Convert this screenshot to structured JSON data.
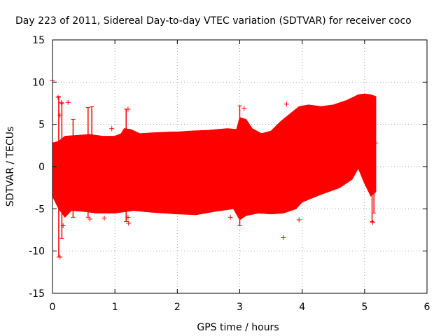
{
  "chart_data": {
    "type": "scatter",
    "title": "Day 223 of 2011, Sidereal Day-to-day VTEC variation (SDTVAR) for receiver coco",
    "xlabel": "GPS time / hours",
    "ylabel": "SDTVAR / TECUs",
    "xlim": [
      0,
      6
    ],
    "ylim": [
      -15,
      15
    ],
    "xticks": [
      0,
      1,
      2,
      3,
      4,
      5,
      6
    ],
    "yticks": [
      -15,
      -10,
      -5,
      0,
      5,
      10,
      15
    ],
    "grid": true,
    "marker": "+",
    "color": "#ff0000",
    "band_upper": [
      {
        "x": 0.0,
        "y": 2.8
      },
      {
        "x": 0.1,
        "y": 3.0
      },
      {
        "x": 0.2,
        "y": 3.6
      },
      {
        "x": 0.4,
        "y": 3.7
      },
      {
        "x": 0.6,
        "y": 3.8
      },
      {
        "x": 0.8,
        "y": 3.6
      },
      {
        "x": 1.0,
        "y": 3.6
      },
      {
        "x": 1.1,
        "y": 3.9
      },
      {
        "x": 1.15,
        "y": 4.5
      },
      {
        "x": 1.25,
        "y": 4.4
      },
      {
        "x": 1.4,
        "y": 3.9
      },
      {
        "x": 1.6,
        "y": 4.0
      },
      {
        "x": 1.9,
        "y": 4.1
      },
      {
        "x": 2.0,
        "y": 4.1
      },
      {
        "x": 2.2,
        "y": 4.2
      },
      {
        "x": 2.5,
        "y": 4.3
      },
      {
        "x": 2.8,
        "y": 4.5
      },
      {
        "x": 2.95,
        "y": 4.4
      },
      {
        "x": 3.0,
        "y": 5.8
      },
      {
        "x": 3.1,
        "y": 5.6
      },
      {
        "x": 3.2,
        "y": 4.5
      },
      {
        "x": 3.35,
        "y": 3.9
      },
      {
        "x": 3.5,
        "y": 4.2
      },
      {
        "x": 3.65,
        "y": 5.3
      },
      {
        "x": 3.8,
        "y": 6.2
      },
      {
        "x": 3.95,
        "y": 7.1
      },
      {
        "x": 4.1,
        "y": 7.3
      },
      {
        "x": 4.3,
        "y": 7.1
      },
      {
        "x": 4.5,
        "y": 7.3
      },
      {
        "x": 4.7,
        "y": 7.8
      },
      {
        "x": 4.9,
        "y": 8.5
      },
      {
        "x": 5.0,
        "y": 8.6
      },
      {
        "x": 5.1,
        "y": 8.5
      },
      {
        "x": 5.18,
        "y": 8.3
      }
    ],
    "band_lower": [
      {
        "x": 0.0,
        "y": -3.5
      },
      {
        "x": 0.1,
        "y": -5.0
      },
      {
        "x": 0.2,
        "y": -6.0
      },
      {
        "x": 0.3,
        "y": -5.2
      },
      {
        "x": 0.5,
        "y": -5.3
      },
      {
        "x": 0.7,
        "y": -5.5
      },
      {
        "x": 1.0,
        "y": -5.5
      },
      {
        "x": 1.3,
        "y": -5.2
      },
      {
        "x": 1.6,
        "y": -5.4
      },
      {
        "x": 2.0,
        "y": -5.6
      },
      {
        "x": 2.3,
        "y": -5.7
      },
      {
        "x": 2.6,
        "y": -5.3
      },
      {
        "x": 2.9,
        "y": -5.0
      },
      {
        "x": 3.0,
        "y": -6.3
      },
      {
        "x": 3.1,
        "y": -5.8
      },
      {
        "x": 3.3,
        "y": -5.5
      },
      {
        "x": 3.5,
        "y": -5.6
      },
      {
        "x": 3.7,
        "y": -5.5
      },
      {
        "x": 3.9,
        "y": -5.0
      },
      {
        "x": 4.0,
        "y": -4.2
      },
      {
        "x": 4.3,
        "y": -3.3
      },
      {
        "x": 4.6,
        "y": -2.5
      },
      {
        "x": 4.8,
        "y": -1.5
      },
      {
        "x": 4.9,
        "y": -0.2
      },
      {
        "x": 5.0,
        "y": -2.0
      },
      {
        "x": 5.1,
        "y": -3.5
      },
      {
        "x": 5.18,
        "y": -3.0
      }
    ],
    "vertical_spikes": [
      {
        "x": 0.1,
        "y_min": -10.7,
        "y_max": 8.3
      },
      {
        "x": 0.15,
        "y_min": -8.5,
        "y_max": 7.5
      },
      {
        "x": 0.33,
        "y_min": -6.0,
        "y_max": 5.6
      },
      {
        "x": 0.57,
        "y_min": -6.0,
        "y_max": 7.0
      },
      {
        "x": 0.63,
        "y_min": -5.0,
        "y_max": 7.1
      },
      {
        "x": 1.18,
        "y_min": -6.5,
        "y_max": 6.8
      },
      {
        "x": 3.0,
        "y_min": -7.0,
        "y_max": 7.2
      },
      {
        "x": 5.12,
        "y_min": -6.5,
        "y_max": 5.0
      },
      {
        "x": 5.15,
        "y_min": -5.5,
        "y_max": 7.0
      }
    ],
    "outliers": [
      {
        "x": 0.0,
        "y": 10.2
      },
      {
        "x": 0.09,
        "y": 8.2
      },
      {
        "x": 0.12,
        "y": 6.1
      },
      {
        "x": 0.14,
        "y": 7.6
      },
      {
        "x": 0.25,
        "y": 7.6
      },
      {
        "x": 0.12,
        "y": -10.7
      },
      {
        "x": 0.17,
        "y": -7.0
      },
      {
        "x": 0.6,
        "y": -6.2
      },
      {
        "x": 0.83,
        "y": -6.1
      },
      {
        "x": 0.95,
        "y": 4.5
      },
      {
        "x": 1.22,
        "y": -6.7
      },
      {
        "x": 1.21,
        "y": 6.8
      },
      {
        "x": 1.21,
        "y": -6.0
      },
      {
        "x": 2.85,
        "y": -6.0
      },
      {
        "x": 3.07,
        "y": 6.9
      },
      {
        "x": 3.7,
        "y": -8.4
      },
      {
        "x": 3.75,
        "y": 7.4
      },
      {
        "x": 3.95,
        "y": -6.3
      },
      {
        "x": 5.13,
        "y": -6.6
      },
      {
        "x": 5.18,
        "y": 2.8
      }
    ]
  }
}
